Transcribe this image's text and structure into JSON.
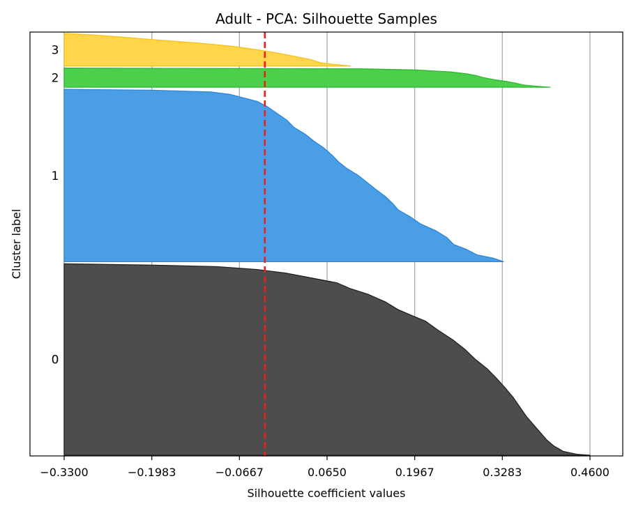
{
  "chart_data": {
    "type": "area",
    "title": "Adult - PCA: Silhouette Samples",
    "xlabel": "Silhouette coefficient values",
    "ylabel": "Cluster label",
    "xlim": [
      -0.33,
      0.46
    ],
    "x_ticks": [
      -0.33,
      -0.1983,
      -0.0667,
      0.065,
      0.1967,
      0.3283,
      0.46
    ],
    "x_tick_labels": [
      "−0.3300",
      "−0.1983",
      "−0.0667",
      "0.0650",
      "0.1967",
      "0.3283",
      "0.4600"
    ],
    "grid": "vertical",
    "average_silhouette": -0.0285,
    "average_line_color": "#e8221b",
    "clusters": [
      {
        "label": "0",
        "color": "#4d4d4d",
        "edge_color": "#222222",
        "sample_count": 10000,
        "profile": [
          [
            0,
            0.46
          ],
          [
            0.005,
            0.44
          ],
          [
            0.02,
            0.42
          ],
          [
            0.05,
            0.405
          ],
          [
            0.08,
            0.395
          ],
          [
            0.12,
            0.385
          ],
          [
            0.16,
            0.375
          ],
          [
            0.2,
            0.365
          ],
          [
            0.25,
            0.355
          ],
          [
            0.3,
            0.345
          ],
          [
            0.35,
            0.333
          ],
          [
            0.4,
            0.32
          ],
          [
            0.45,
            0.306
          ],
          [
            0.5,
            0.288
          ],
          [
            0.55,
            0.273
          ],
          [
            0.6,
            0.255
          ],
          [
            0.65,
            0.233
          ],
          [
            0.7,
            0.213
          ],
          [
            0.73,
            0.192
          ],
          [
            0.76,
            0.172
          ],
          [
            0.8,
            0.153
          ],
          [
            0.84,
            0.127
          ],
          [
            0.87,
            0.1
          ],
          [
            0.9,
            0.08
          ],
          [
            0.93,
            0.035
          ],
          [
            0.95,
            0.005
          ],
          [
            0.97,
            -0.04
          ],
          [
            0.985,
            -0.1
          ],
          [
            0.993,
            -0.2
          ],
          [
            1,
            -0.33
          ]
        ]
      },
      {
        "label": "1",
        "color": "#4a9ee6",
        "edge_color": "#2f85d6",
        "sample_count": 9000,
        "profile": [
          [
            0,
            0.33
          ],
          [
            0.02,
            0.315
          ],
          [
            0.04,
            0.29
          ],
          [
            0.07,
            0.275
          ],
          [
            0.1,
            0.255
          ],
          [
            0.14,
            0.245
          ],
          [
            0.18,
            0.228
          ],
          [
            0.22,
            0.205
          ],
          [
            0.26,
            0.19
          ],
          [
            0.3,
            0.172
          ],
          [
            0.34,
            0.163
          ],
          [
            0.38,
            0.152
          ],
          [
            0.42,
            0.138
          ],
          [
            0.46,
            0.125
          ],
          [
            0.5,
            0.112
          ],
          [
            0.54,
            0.095
          ],
          [
            0.58,
            0.082
          ],
          [
            0.62,
            0.072
          ],
          [
            0.66,
            0.06
          ],
          [
            0.7,
            0.045
          ],
          [
            0.74,
            0.032
          ],
          [
            0.78,
            0.015
          ],
          [
            0.82,
            0.005
          ],
          [
            0.86,
            -0.01
          ],
          [
            0.9,
            -0.025
          ],
          [
            0.93,
            -0.04
          ],
          [
            0.95,
            -0.06
          ],
          [
            0.97,
            -0.08
          ],
          [
            0.985,
            -0.11
          ],
          [
            0.995,
            -0.2
          ],
          [
            1,
            -0.33
          ]
        ]
      },
      {
        "label": "2",
        "color": "#4cd04c",
        "edge_color": "#2fb82f",
        "sample_count": 1000,
        "profile": [
          [
            0,
            0.4
          ],
          [
            0.05,
            0.38
          ],
          [
            0.12,
            0.36
          ],
          [
            0.2,
            0.35
          ],
          [
            0.3,
            0.335
          ],
          [
            0.4,
            0.315
          ],
          [
            0.5,
            0.3
          ],
          [
            0.6,
            0.29
          ],
          [
            0.7,
            0.275
          ],
          [
            0.8,
            0.25
          ],
          [
            0.9,
            0.2
          ],
          [
            0.96,
            0.12
          ],
          [
            1,
            -0.33
          ]
        ]
      },
      {
        "label": "3",
        "color": "#ffd54a",
        "edge_color": "#f2c21e",
        "sample_count": 1700,
        "profile": [
          [
            0,
            0.1
          ],
          [
            0.05,
            0.075
          ],
          [
            0.1,
            0.055
          ],
          [
            0.2,
            0.04
          ],
          [
            0.3,
            0.015
          ],
          [
            0.4,
            -0.01
          ],
          [
            0.5,
            -0.04
          ],
          [
            0.6,
            -0.075
          ],
          [
            0.7,
            -0.125
          ],
          [
            0.8,
            -0.19
          ],
          [
            0.9,
            -0.25
          ],
          [
            0.97,
            -0.3
          ],
          [
            1,
            -0.33
          ]
        ]
      }
    ]
  }
}
